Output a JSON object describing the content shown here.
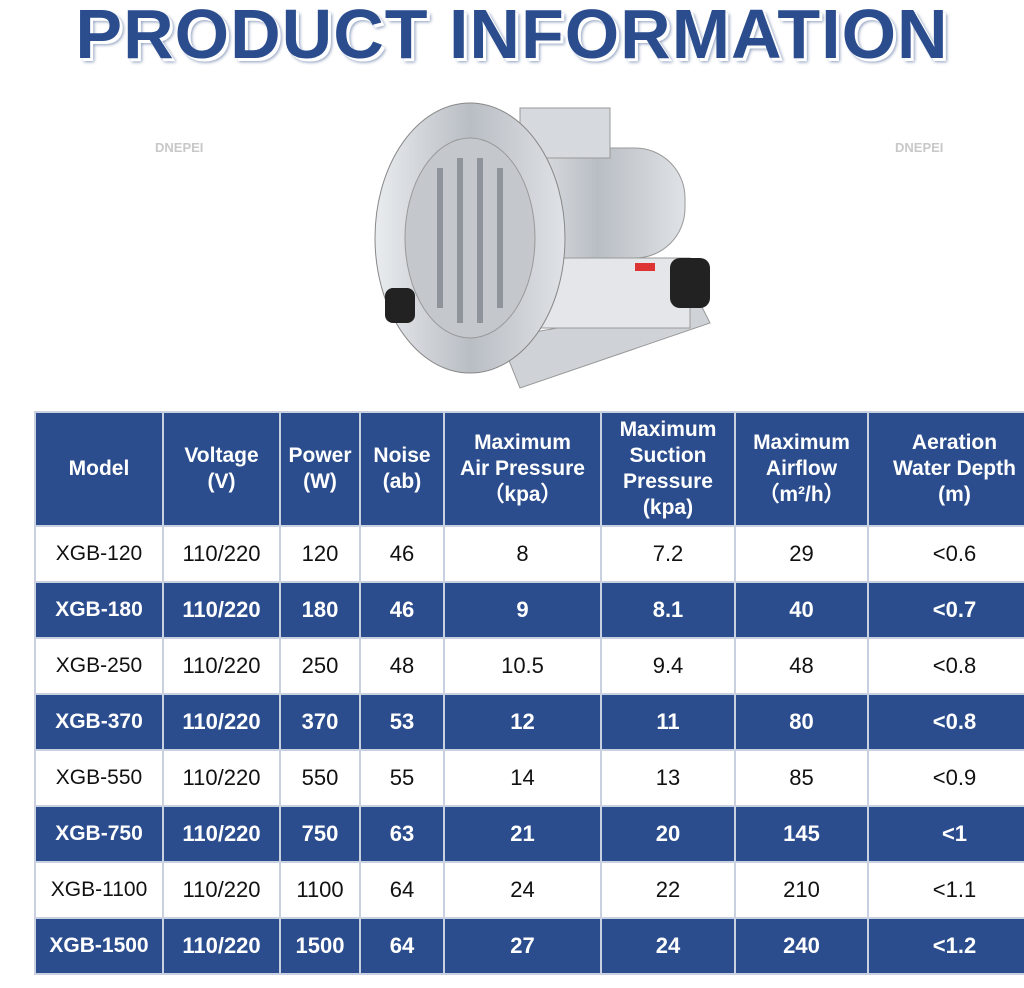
{
  "header": {
    "title": "PRODUCT INFORMATION",
    "watermark": "DNEPEI"
  },
  "table": {
    "columns": [
      "Model",
      "Voltage\n(V)",
      "Power\n(W)",
      "Noise\n(ab)",
      "Maximum\nAir Pressure\n（kpa）",
      "Maximum\nSuction\nPressure\n(kpa)",
      "Maximum\nAirflow\n（m²/h）",
      "Aeration\nWater Depth\n(m)"
    ],
    "rows": [
      [
        "XGB-120",
        "110/220",
        "120",
        "46",
        "8",
        "7.2",
        "29",
        "<0.6"
      ],
      [
        "XGB-180",
        "110/220",
        "180",
        "46",
        "9",
        "8.1",
        "40",
        "<0.7"
      ],
      [
        "XGB-250",
        "110/220",
        "250",
        "48",
        "10.5",
        "9.4",
        "48",
        "<0.8"
      ],
      [
        "XGB-370",
        "110/220",
        "370",
        "53",
        "12",
        "11",
        "80",
        "<0.8"
      ],
      [
        "XGB-550",
        "110/220",
        "550",
        "55",
        "14",
        "13",
        "85",
        "<0.9"
      ],
      [
        "XGB-750",
        "110/220",
        "750",
        "63",
        "21",
        "20",
        "145",
        "<1"
      ],
      [
        "XGB-1100",
        "110/220",
        "1100",
        "64",
        "24",
        "22",
        "210",
        "<1.1"
      ],
      [
        "XGB-1500",
        "110/220",
        "1500",
        "64",
        "27",
        "24",
        "240",
        "<1.2"
      ]
    ]
  }
}
